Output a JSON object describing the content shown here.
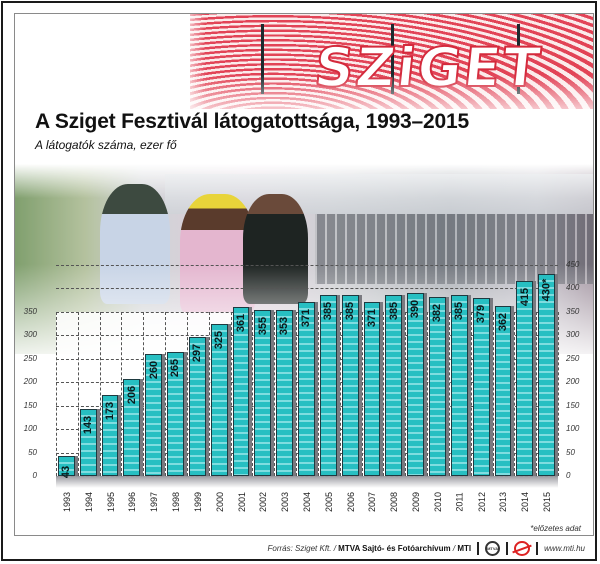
{
  "header": {
    "title": "A Sziget Fesztivál látogatottsága, 1993–2015",
    "subtitle": "A látogatók száma, ezer fő",
    "banner_text": "SZiGET"
  },
  "colors": {
    "bar_fill": "#27bfc2",
    "bar_stripe": "#7fdde0",
    "bar_outline": "#1e3a40",
    "bar_shadow": "#7a7a80",
    "banner_red": "#e03a4e"
  },
  "chart_data": {
    "type": "bar",
    "title": "A Sziget Fesztivál látogatottsága, 1993–2015",
    "subtitle": "A látogatók száma, ezer fő",
    "xlabel": "",
    "ylabel": "A látogatók száma, ezer fő",
    "categories": [
      "1993",
      "1994",
      "1995",
      "1996",
      "1997",
      "1998",
      "1999",
      "2000",
      "2001",
      "2002",
      "2003",
      "2004",
      "2005",
      "2006",
      "2007",
      "2008",
      "2009",
      "2010",
      "2011",
      "2012",
      "2013",
      "2014",
      "2015"
    ],
    "values": [
      43,
      143,
      173,
      206,
      260,
      265,
      297,
      325,
      361,
      355,
      353,
      371,
      385,
      385,
      371,
      385,
      390,
      382,
      385,
      379,
      362,
      415,
      430
    ],
    "value_labels": [
      "43",
      "143",
      "173",
      "206",
      "260",
      "265",
      "297",
      "325",
      "361",
      "355",
      "353",
      "371",
      "385",
      "385",
      "371",
      "385",
      "390",
      "382",
      "385",
      "379",
      "362",
      "415",
      "430*"
    ],
    "left_axis_ticks": [
      "0",
      "50",
      "100",
      "150",
      "200",
      "250",
      "300",
      "350"
    ],
    "right_axis_ticks": [
      "0",
      "50",
      "100",
      "150",
      "200",
      "250",
      "300",
      "350",
      "400",
      "450"
    ],
    "ylim": [
      0,
      450
    ],
    "grid": true,
    "annotation": "*előzetes adat"
  },
  "footer": {
    "source_prefix": "Forrás: Sziget Kft. / ",
    "source_bold": "MTVA Sajtó- és Fotóarchívum",
    "source_sep": " / ",
    "source_mti": "MTI",
    "mtva_logo_text": "MTVA",
    "website": "www.mti.hu"
  }
}
